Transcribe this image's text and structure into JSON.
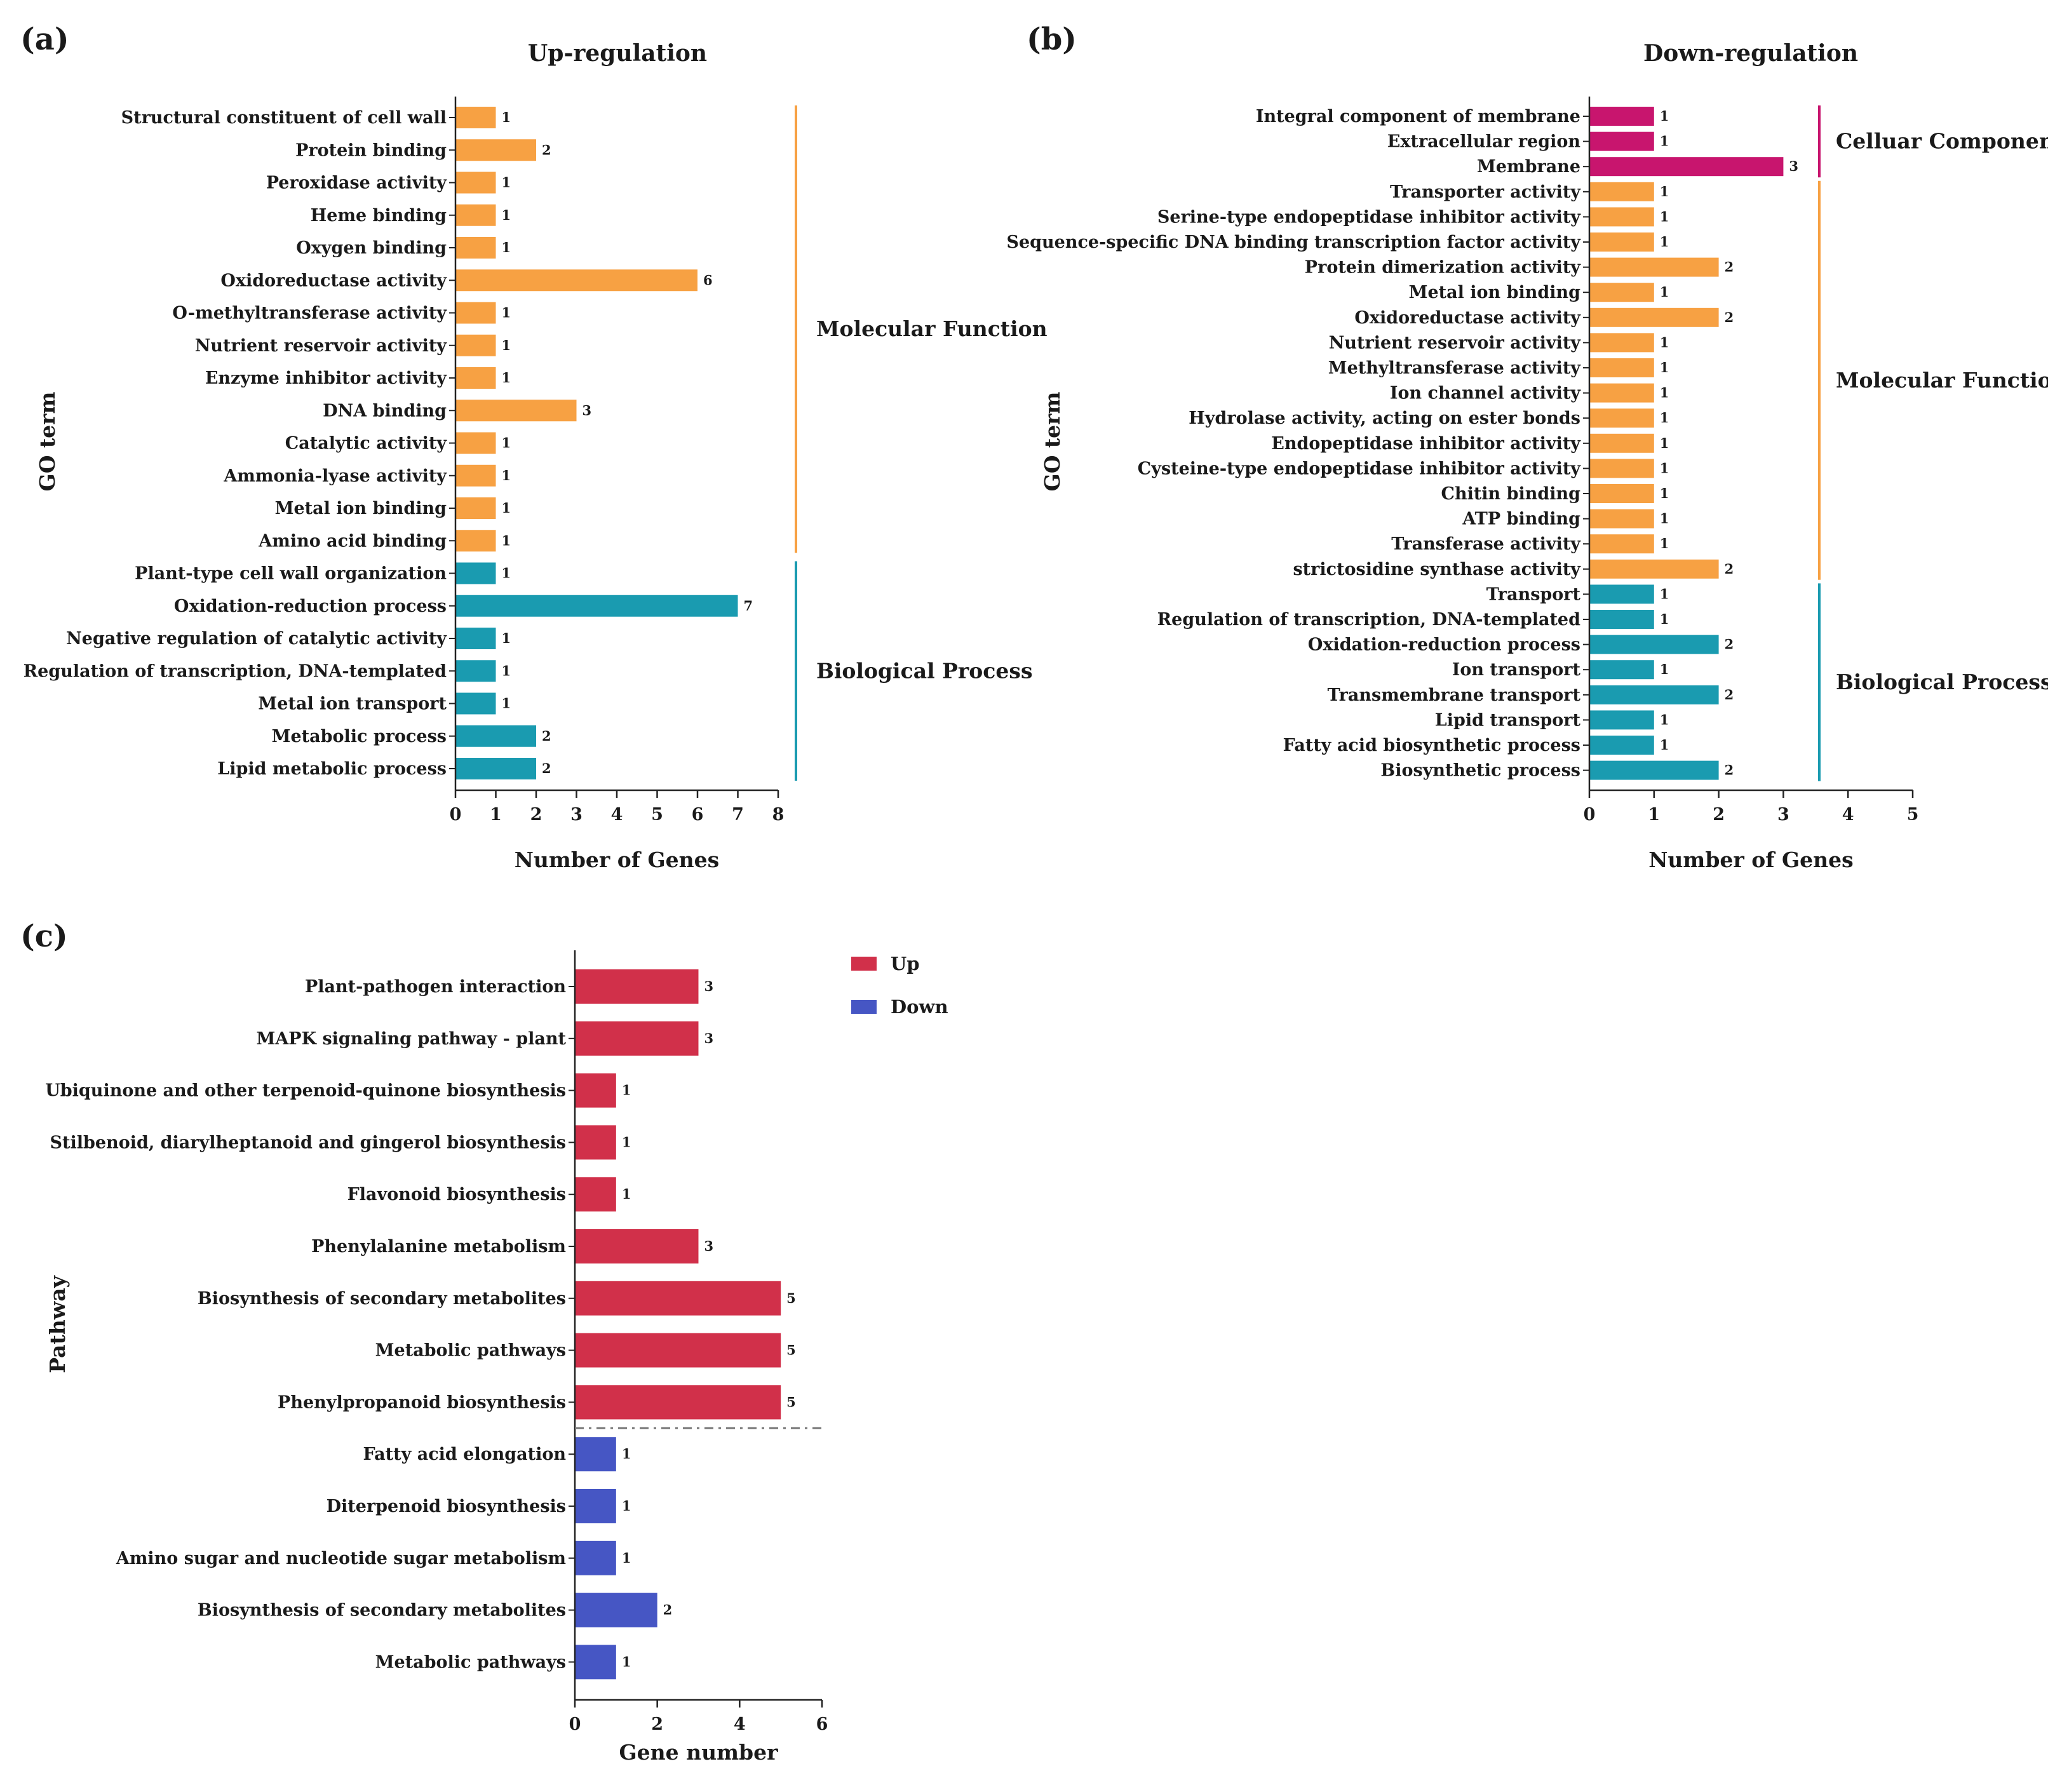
{
  "chart_data": [
    {
      "panel_label": "(a)",
      "type": "bar",
      "orientation": "horizontal",
      "title": "Up-regulation",
      "xlabel": "Number of Genes",
      "ylabel": "GO term",
      "xlim": [
        0,
        8
      ],
      "xticks": [
        "0",
        "1",
        "2",
        "3",
        "4",
        "5",
        "6",
        "7",
        "8"
      ],
      "categories": [
        "Structural constituent of cell wall",
        "Protein binding",
        "Peroxidase activity",
        "Heme binding",
        "Oxygen binding",
        "Oxidoreductase activity",
        "O-methyltransferase activity",
        "Nutrient reservoir activity",
        "Enzyme inhibitor activity",
        "DNA binding",
        "Catalytic activity",
        "Ammonia-lyase activity",
        "Metal ion binding",
        "Amino acid binding",
        "Plant-type cell wall organization",
        "Oxidation-reduction process",
        "Negative regulation of catalytic activity",
        "Regulation of transcription, DNA-templated",
        "Metal ion transport",
        "Metabolic process",
        "Lipid metabolic process"
      ],
      "values": [
        1,
        2,
        1,
        1,
        1,
        6,
        1,
        1,
        1,
        3,
        1,
        1,
        1,
        1,
        1,
        7,
        1,
        1,
        1,
        2,
        2
      ],
      "value_labels": [
        "1",
        "2",
        "1",
        "1",
        "1",
        "6",
        "1",
        "1",
        "1",
        "3",
        "1",
        "1",
        "1",
        "1",
        "1",
        "7",
        "1",
        "1",
        "1",
        "2",
        "2"
      ],
      "groups": [
        {
          "name": "Molecular Function",
          "start": 0,
          "end": 13,
          "color": "#f7a143"
        },
        {
          "name": "Biological Process",
          "start": 14,
          "end": 20,
          "color": "#1a9bb0"
        }
      ]
    },
    {
      "panel_label": "(b)",
      "type": "bar",
      "orientation": "horizontal",
      "title": "Down-regulation",
      "xlabel": "Number of Genes",
      "ylabel": "GO term",
      "xlim": [
        0,
        5
      ],
      "xticks": [
        "0",
        "1",
        "2",
        "3",
        "4",
        "5"
      ],
      "categories": [
        "Integral component of membrane",
        "Extracellular region",
        "Membrane",
        "Transporter activity",
        "Serine-type endopeptidase inhibitor activity",
        "Sequence-specific DNA binding transcription factor activity",
        "Protein dimerization activity",
        "Metal ion binding",
        "Oxidoreductase activity",
        "Nutrient reservoir activity",
        "Methyltransferase activity",
        "Ion channel activity",
        "Hydrolase activity, acting on ester bonds",
        "Endopeptidase inhibitor activity",
        "Cysteine-type endopeptidase inhibitor activity",
        "Chitin binding",
        "ATP binding",
        "Transferase activity",
        "strictosidine synthase activity",
        "Transport",
        "Regulation of transcription, DNA-templated",
        "Oxidation-reduction process",
        "Ion transport",
        "Transmembrane transport",
        "Lipid transport",
        "Fatty acid biosynthetic process",
        "Biosynthetic process"
      ],
      "values": [
        1,
        1,
        3,
        1,
        1,
        1,
        2,
        1,
        2,
        1,
        1,
        1,
        1,
        1,
        1,
        1,
        1,
        1,
        2,
        1,
        1,
        2,
        1,
        2,
        1,
        1,
        2
      ],
      "value_labels": [
        "1",
        "1",
        "3",
        "1",
        "1",
        "1",
        "2",
        "1",
        "2",
        "1",
        "1",
        "1",
        "1",
        "1",
        "1",
        "1",
        "1",
        "1",
        "2",
        "1",
        "1",
        "2",
        "1",
        "2",
        "1",
        "1",
        "2"
      ],
      "groups": [
        {
          "name": "Celluar Component",
          "start": 0,
          "end": 2,
          "color": "#c8156e"
        },
        {
          "name": "Molecular Function",
          "start": 3,
          "end": 18,
          "color": "#f7a143"
        },
        {
          "name": "Biological Process",
          "start": 19,
          "end": 26,
          "color": "#1a9bb0"
        }
      ]
    },
    {
      "panel_label": "(c)",
      "type": "bar",
      "orientation": "horizontal",
      "xlabel": "Gene number",
      "ylabel": "Pathway",
      "xlim": [
        0,
        6
      ],
      "xticks": [
        "0",
        "2",
        "4",
        "6"
      ],
      "categories": [
        "Plant-pathogen interaction",
        "MAPK signaling pathway - plant",
        "Ubiquinone and other terpenoid-quinone biosynthesis",
        "Stilbenoid, diarylheptanoid and gingerol biosynthesis",
        "Flavonoid biosynthesis",
        "Phenylalanine metabolism",
        "Biosynthesis of secondary metabolites",
        "Metabolic pathways",
        "Phenylpropanoid biosynthesis",
        "Fatty acid elongation",
        "Diterpenoid biosynthesis",
        "Amino sugar and nucleotide sugar metabolism",
        "Biosynthesis of secondary metabolites",
        "Metabolic pathways"
      ],
      "values": [
        3,
        3,
        1,
        1,
        1,
        3,
        5,
        5,
        5,
        1,
        1,
        1,
        2,
        1
      ],
      "value_labels": [
        "3",
        "3",
        "1",
        "1",
        "1",
        "3",
        "5",
        "5",
        "5",
        "1",
        "1",
        "1",
        "2",
        "1"
      ],
      "series_of_bar": [
        "Up",
        "Up",
        "Up",
        "Up",
        "Up",
        "Up",
        "Up",
        "Up",
        "Up",
        "Down",
        "Down",
        "Down",
        "Down",
        "Down"
      ],
      "legend": [
        {
          "name": "Up",
          "color": "#d1304a"
        },
        {
          "name": "Down",
          "color": "#4656c4"
        }
      ],
      "legend_position": "top-right"
    }
  ]
}
